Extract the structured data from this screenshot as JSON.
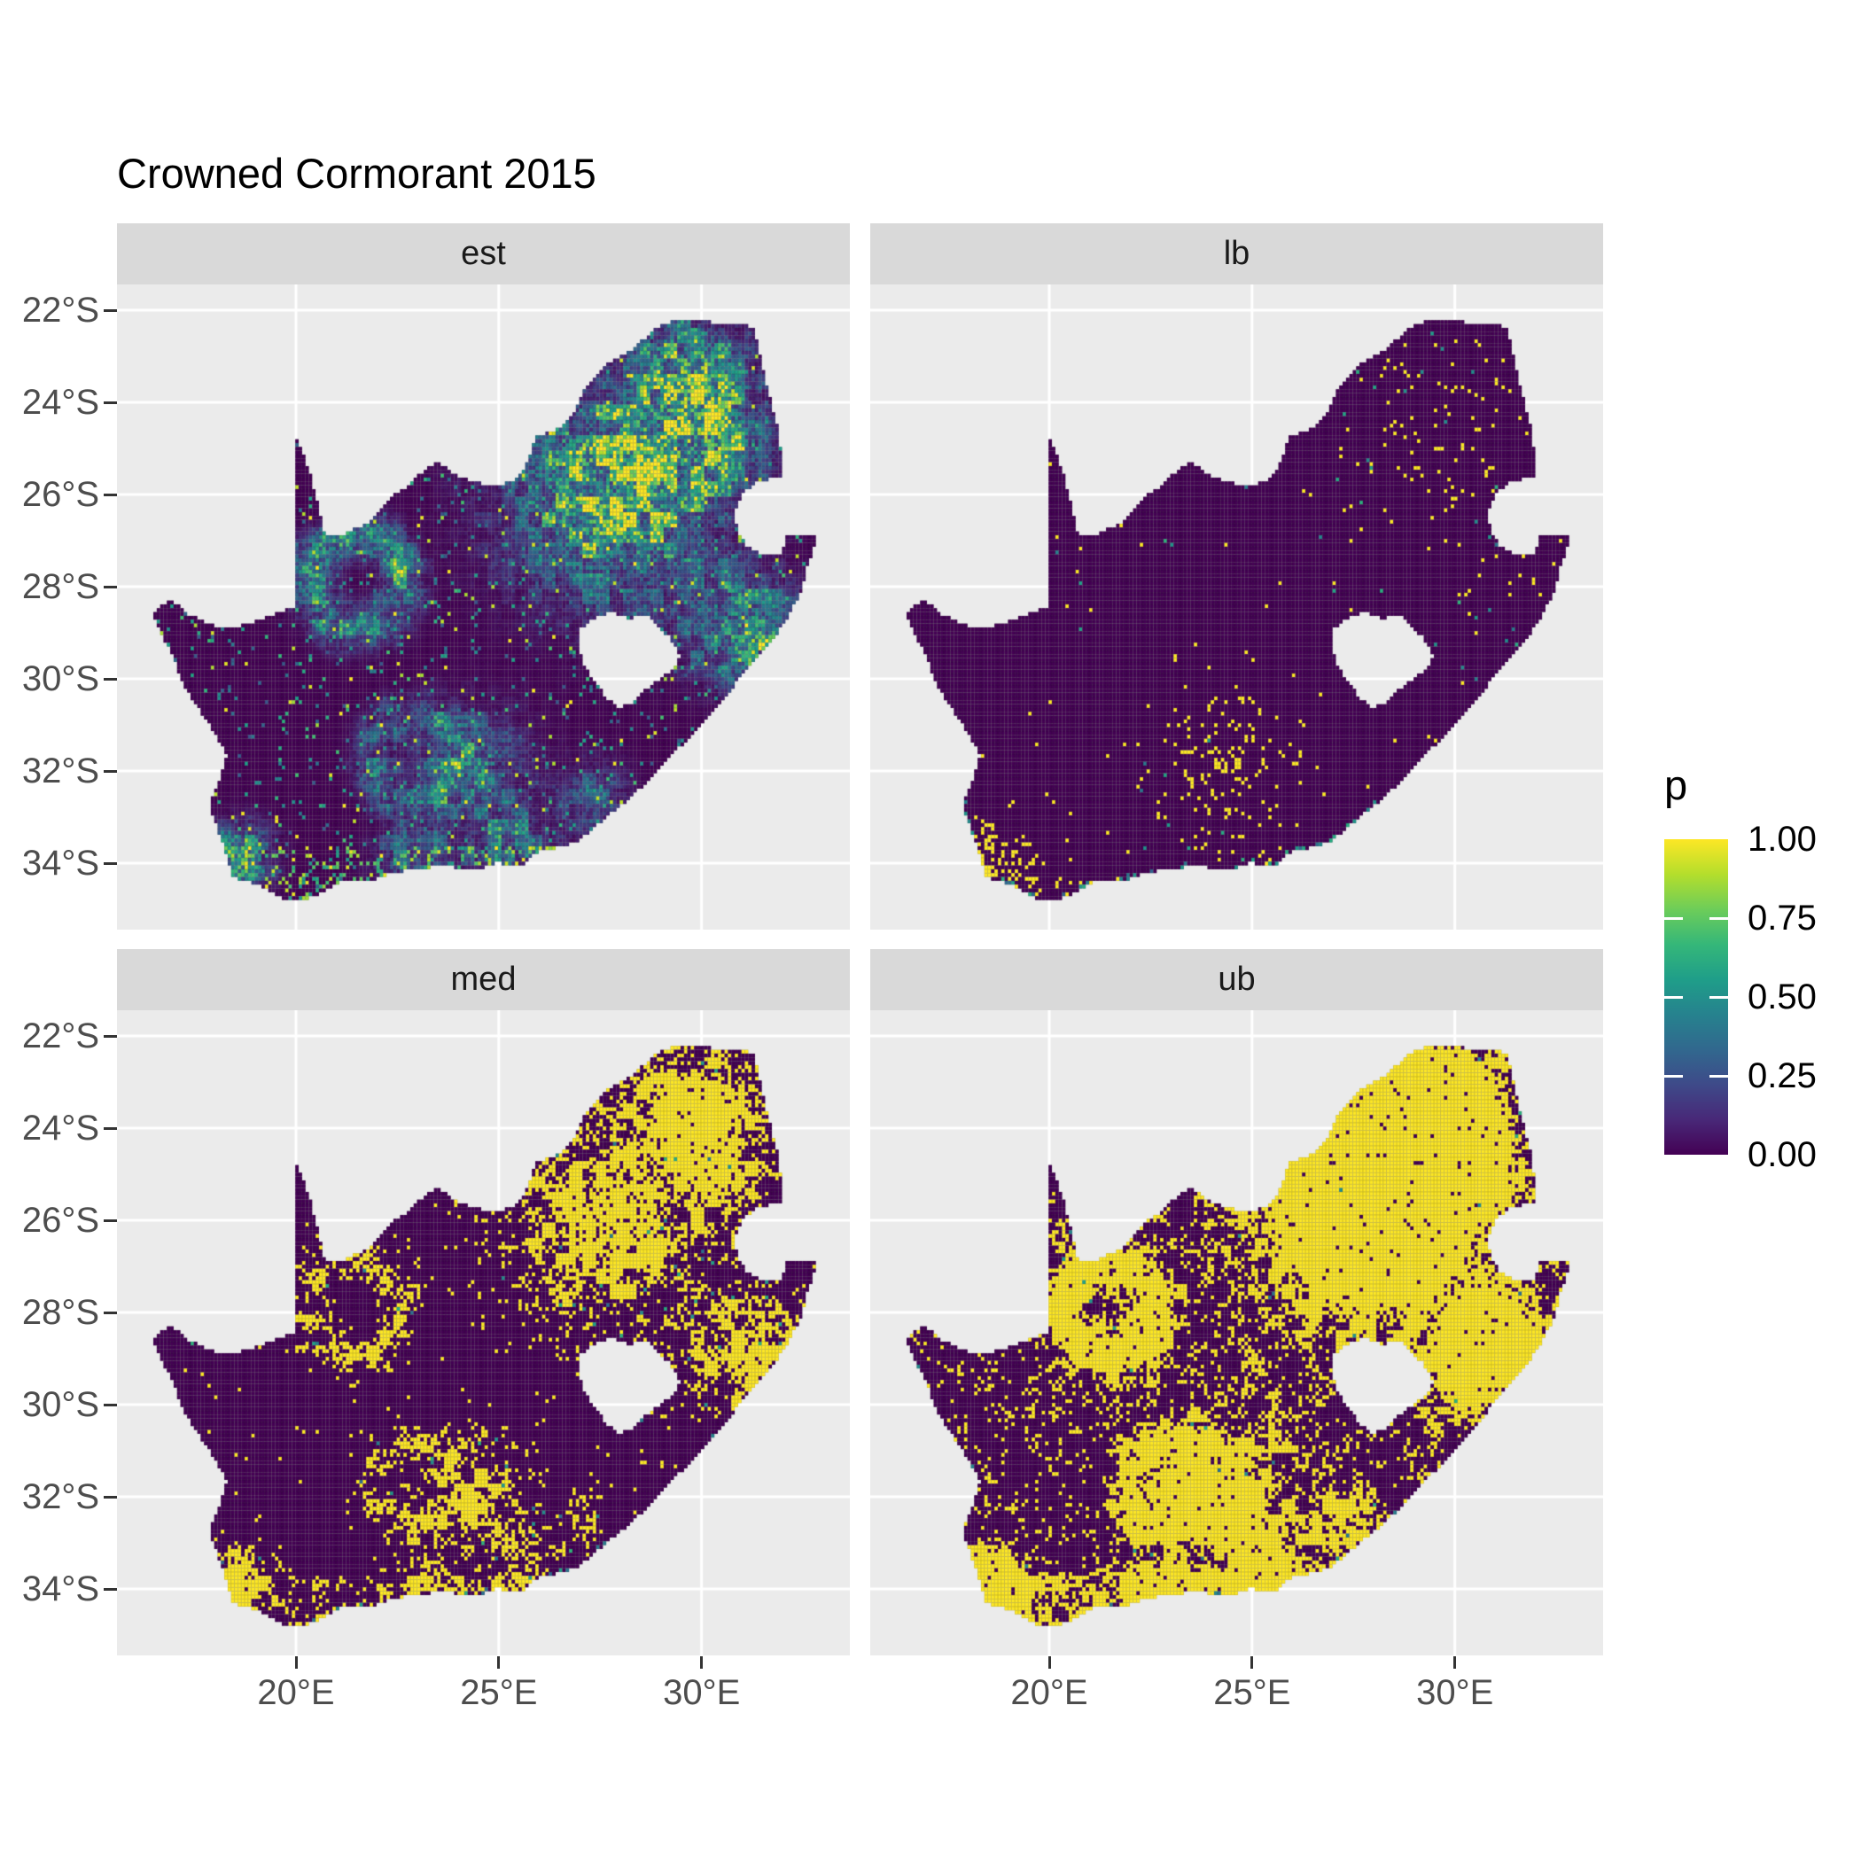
{
  "title": "Crowned Cormorant 2015",
  "facets": [
    {
      "id": "est",
      "label": "est"
    },
    {
      "id": "lb",
      "label": "lb"
    },
    {
      "id": "med",
      "label": "med"
    },
    {
      "id": "ub",
      "label": "ub"
    }
  ],
  "axis": {
    "x": {
      "labels": [
        "20°E",
        "25°E",
        "30°E"
      ],
      "values": [
        20,
        25,
        30
      ]
    },
    "y": {
      "labels": [
        "22°S",
        "24°S",
        "26°S",
        "28°S",
        "30°S",
        "32°S",
        "34°S"
      ],
      "values": [
        22,
        24,
        26,
        28,
        30,
        32,
        34
      ]
    }
  },
  "legend": {
    "title": "p",
    "entries": [
      {
        "label": "1.00",
        "value": 1.0
      },
      {
        "label": "0.75",
        "value": 0.75
      },
      {
        "label": "0.50",
        "value": 0.5
      },
      {
        "label": "0.25",
        "value": 0.25
      },
      {
        "label": "0.00",
        "value": 0.0
      }
    ]
  },
  "colors": {
    "background": "#ffffff",
    "panel_bg": "#ebebeb",
    "strip_bg": "#d9d9d9",
    "gridline": "#ffffff",
    "axis_text": "#4d4d4d",
    "tick": "#333333",
    "title_text": "#000000",
    "viridis": [
      "#440154",
      "#482878",
      "#3e4a89",
      "#31688e",
      "#26828e",
      "#1f9e89",
      "#35b779",
      "#6dcd59",
      "#b4de2c",
      "#fde725"
    ]
  },
  "chart_data": {
    "type": "heatmap",
    "title": "Crowned Cormorant 2015",
    "subtype": "faceted raster map of South Africa, reporting-rate probability p per pentad grid cell",
    "facets": [
      "est",
      "lb",
      "med",
      "ub"
    ],
    "xlabel": "",
    "ylabel": "",
    "x_range_deg_east": [
      15.6,
      33.7
    ],
    "y_range_deg_south": [
      21.4,
      35.4
    ],
    "x_ticks_deg_east": [
      20,
      25,
      30
    ],
    "y_ticks_deg_south": [
      22,
      24,
      26,
      28,
      30,
      32,
      34
    ],
    "cell_size_deg": 0.08333,
    "value_name": "p",
    "value_range": [
      0,
      1
    ],
    "palette": "viridis",
    "legend_position": "right",
    "grid": "major only, white on grey panel",
    "map": {
      "outline": [
        [
          16.45,
          -28.6
        ],
        [
          16.9,
          -28.25
        ],
        [
          17.35,
          -28.6
        ],
        [
          17.75,
          -28.77
        ],
        [
          18.2,
          -28.91
        ],
        [
          18.7,
          -28.84
        ],
        [
          19.25,
          -28.68
        ],
        [
          19.7,
          -28.52
        ],
        [
          19.99,
          -28.42
        ],
        [
          19.99,
          -24.76
        ],
        [
          20.2,
          -25.15
        ],
        [
          20.38,
          -25.65
        ],
        [
          20.52,
          -26.15
        ],
        [
          20.64,
          -26.6
        ],
        [
          20.71,
          -26.86
        ],
        [
          21.15,
          -26.87
        ],
        [
          21.7,
          -26.65
        ],
        [
          22.05,
          -26.38
        ],
        [
          22.35,
          -26.05
        ],
        [
          22.7,
          -25.85
        ],
        [
          23.05,
          -25.55
        ],
        [
          23.45,
          -25.28
        ],
        [
          23.95,
          -25.58
        ],
        [
          24.45,
          -25.75
        ],
        [
          24.95,
          -25.8
        ],
        [
          25.35,
          -25.72
        ],
        [
          25.62,
          -25.43
        ],
        [
          25.8,
          -25.05
        ],
        [
          25.92,
          -24.73
        ],
        [
          26.4,
          -24.62
        ],
        [
          26.85,
          -24.27
        ],
        [
          27.12,
          -23.68
        ],
        [
          27.62,
          -23.21
        ],
        [
          28.2,
          -22.9
        ],
        [
          28.8,
          -22.45
        ],
        [
          29.36,
          -22.18
        ],
        [
          29.95,
          -22.22
        ],
        [
          30.55,
          -22.3
        ],
        [
          31.1,
          -22.33
        ],
        [
          31.29,
          -22.4
        ],
        [
          31.48,
          -23.15
        ],
        [
          31.68,
          -23.85
        ],
        [
          31.88,
          -24.55
        ],
        [
          31.98,
          -25.2
        ],
        [
          32.02,
          -25.62
        ],
        [
          31.4,
          -25.72
        ],
        [
          30.97,
          -26.02
        ],
        [
          30.8,
          -26.45
        ],
        [
          30.92,
          -26.82
        ],
        [
          31.12,
          -27.12
        ],
        [
          31.55,
          -27.31
        ],
        [
          31.97,
          -27.31
        ],
        [
          32.11,
          -26.86
        ],
        [
          32.88,
          -26.86
        ],
        [
          32.64,
          -27.48
        ],
        [
          32.44,
          -28.12
        ],
        [
          32.18,
          -28.6
        ],
        [
          31.78,
          -29.12
        ],
        [
          31.28,
          -29.62
        ],
        [
          30.98,
          -29.92
        ],
        [
          30.58,
          -30.42
        ],
        [
          30.02,
          -30.98
        ],
        [
          29.45,
          -31.5
        ],
        [
          28.85,
          -32.08
        ],
        [
          28.25,
          -32.58
        ],
        [
          27.55,
          -33.08
        ],
        [
          26.95,
          -33.52
        ],
        [
          26.35,
          -33.7
        ],
        [
          25.88,
          -33.78
        ],
        [
          25.58,
          -34.05
        ],
        [
          24.95,
          -34.0
        ],
        [
          24.35,
          -34.17
        ],
        [
          23.65,
          -34.05
        ],
        [
          22.95,
          -34.14
        ],
        [
          22.35,
          -34.22
        ],
        [
          21.75,
          -34.42
        ],
        [
          21.05,
          -34.42
        ],
        [
          20.45,
          -34.72
        ],
        [
          20.0,
          -34.83
        ],
        [
          19.55,
          -34.73
        ],
        [
          19.22,
          -34.52
        ],
        [
          18.82,
          -34.4
        ],
        [
          18.46,
          -34.32
        ],
        [
          18.35,
          -34.06
        ],
        [
          18.28,
          -33.82
        ],
        [
          18.08,
          -33.28
        ],
        [
          17.86,
          -32.72
        ],
        [
          18.12,
          -32.15
        ],
        [
          18.3,
          -31.66
        ],
        [
          17.92,
          -31.06
        ],
        [
          17.52,
          -30.56
        ],
        [
          17.18,
          -30.06
        ],
        [
          16.98,
          -29.56
        ],
        [
          16.68,
          -29.02
        ]
      ],
      "hole_lesotho": [
        [
          27.02,
          -28.92
        ],
        [
          27.42,
          -28.66
        ],
        [
          27.78,
          -28.56
        ],
        [
          28.18,
          -28.7
        ],
        [
          28.62,
          -28.62
        ],
        [
          29.02,
          -28.92
        ],
        [
          29.36,
          -29.26
        ],
        [
          29.46,
          -29.56
        ],
        [
          29.2,
          -29.86
        ],
        [
          28.78,
          -30.12
        ],
        [
          28.28,
          -30.52
        ],
        [
          27.94,
          -30.62
        ],
        [
          27.68,
          -30.44
        ],
        [
          27.38,
          -30.08
        ],
        [
          27.08,
          -29.68
        ],
        [
          26.98,
          -29.28
        ]
      ]
    },
    "fields": {
      "est": {
        "kind": "continuous",
        "seed": 11,
        "hotspots": [
          [
            27.9,
            -25.9,
            1.45,
            1.15
          ],
          [
            29.7,
            -23.5,
            0.85,
            0.95
          ],
          [
            30.5,
            -24.9,
            0.65,
            0.7
          ],
          [
            31.0,
            -28.9,
            0.75,
            0.9
          ],
          [
            25.3,
            -33.6,
            0.6,
            0.55
          ],
          [
            18.55,
            -33.9,
            0.45,
            0.95
          ],
          [
            22.9,
            -33.9,
            0.55,
            0.5
          ],
          [
            27.3,
            -32.6,
            0.5,
            0.4
          ],
          [
            24.3,
            -31.9,
            0.8,
            0.45
          ]
        ],
        "rings": [
          [
            21.5,
            -27.9,
            1.0,
            0.32,
            0.62
          ],
          [
            22.9,
            -31.7,
            0.9,
            0.3,
            0.4
          ]
        ],
        "speckle": 0.055,
        "speckle_lo": 0.25,
        "speckle_hi": 0.7,
        "yellow_dots": 0.012,
        "south_band": [
          33.6,
          0.2,
          0.5,
          1.0
        ]
      },
      "lb": {
        "kind": "binary",
        "seed": 22,
        "base_p": 0.004,
        "field_gain": 0,
        "field_pow": 1,
        "clusters": [
          [
            24.3,
            -32.0,
            0.9,
            0.12
          ],
          [
            18.5,
            -34.0,
            0.5,
            0.4
          ],
          [
            29.3,
            -24.3,
            1.2,
            0.04
          ],
          [
            31.6,
            -28.0,
            0.7,
            0.03
          ],
          [
            30.6,
            -25.4,
            0.8,
            0.025
          ]
        ],
        "south_band": [
          34.2,
          0.06
        ],
        "teal_p": 0.004,
        "coast_teal": 0.3
      },
      "med": {
        "kind": "binary",
        "seed": 33,
        "base_p": 0.012,
        "field_gain": 0.8,
        "field_pow": 1.2,
        "clusters": [
          [
            24.3,
            -32.0,
            0.9,
            0.18
          ],
          [
            18.5,
            -34.0,
            0.5,
            0.45
          ],
          [
            30.9,
            -29.3,
            0.7,
            0.12
          ],
          [
            30.3,
            -23.6,
            1.0,
            0.3
          ],
          [
            31.9,
            -28.7,
            0.7,
            0.2
          ]
        ],
        "south_band": [
          33.7,
          0.16
        ],
        "teal_p": 0.012,
        "coast_teal": 0.12
      },
      "ub": {
        "kind": "binary",
        "seed": 44,
        "base_p": 0.07,
        "field_gain": 1.9,
        "field_pow": 1.0,
        "clusters": [
          [
            24.0,
            -31.9,
            1.1,
            0.3
          ],
          [
            18.6,
            -33.9,
            0.6,
            0.5
          ],
          [
            21.8,
            -28.3,
            1.4,
            0.18
          ],
          [
            30.0,
            -29.5,
            0.9,
            0.45
          ],
          [
            31.9,
            -27.5,
            0.9,
            0.35
          ],
          [
            20.3,
            -26.3,
            0.7,
            0.2
          ],
          [
            28.8,
            -24.0,
            1.3,
            0.45
          ],
          [
            25.5,
            -30.5,
            1.5,
            0.1
          ]
        ],
        "south_band": [
          33.6,
          0.38
        ],
        "teal_p": 0.015,
        "coast_teal": 0.15
      }
    }
  }
}
